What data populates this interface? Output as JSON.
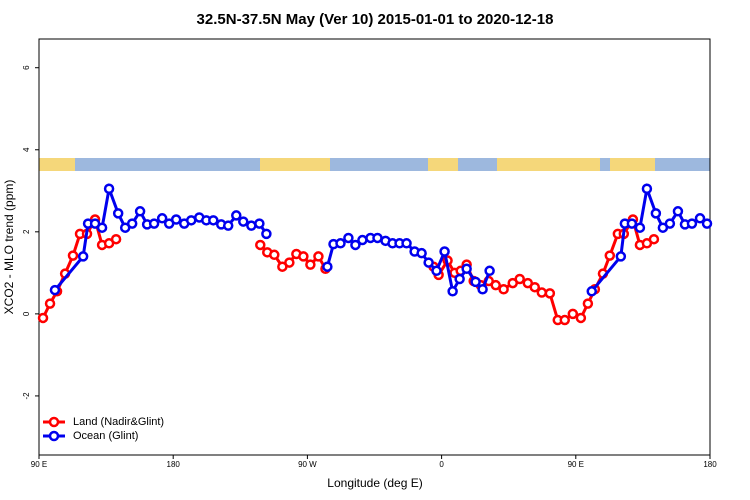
{
  "chart_data": {
    "type": "line",
    "title": "32.5N-37.5N May (Ver 10)   2015-01-01 to 2020-12-18",
    "xlabel": "Longitude (deg E)",
    "ylabel": "XCO2 - MLO trend (ppm)",
    "xlim": [
      90,
      540
    ],
    "ylim": [
      -3.44,
      6.7
    ],
    "xticks": [
      {
        "value": 90,
        "label": "90 E"
      },
      {
        "value": 180,
        "label": "180"
      },
      {
        "value": 270,
        "label": "90 W"
      },
      {
        "value": 360,
        "label": "0"
      },
      {
        "value": 450,
        "label": "90 E"
      },
      {
        "value": 540,
        "label": "180"
      }
    ],
    "yticks": [
      -2,
      0,
      2,
      4,
      6
    ],
    "legend": "bottom-left",
    "series": [
      {
        "name": "Land (Nadir&Glint)",
        "color": "#ff0000",
        "x": [
          92.7,
          97.4,
          102.1,
          107.5,
          112.8,
          117.5,
          122.2,
          127.6,
          132.3,
          137,
          141.7,
          238.4,
          243.1,
          247.8,
          253.2,
          257.9,
          262.6,
          267.3,
          272,
          277.4,
          282.1,
          354.6,
          358,
          364,
          368.7,
          372.8,
          376.8,
          381.5,
          386.2,
          391.6,
          396.3,
          401.6,
          407.7,
          412.4,
          417.8,
          422.5,
          427.2,
          432.6,
          437.9,
          442.6,
          448,
          453.4,
          458.1,
          462.8,
          468.2,
          472.8,
          478.2,
          482.2,
          488.3,
          493,
          497.7,
          502.4
        ],
        "values": [
          -0.1,
          0.25,
          0.55,
          0.98,
          1.42,
          1.95,
          1.95,
          2.3,
          1.68,
          1.72,
          1.82,
          1.68,
          1.5,
          1.44,
          1.15,
          1.25,
          1.46,
          1.4,
          1.2,
          1.4,
          1.1,
          1.15,
          0.95,
          1.3,
          1.0,
          1.05,
          1.2,
          0.8,
          0.7,
          0.8,
          0.7,
          0.6,
          0.75,
          0.85,
          0.75,
          0.65,
          0.52,
          0.5,
          -0.15,
          -0.15,
          0,
          -0.1,
          0.25,
          0.6,
          0.98,
          1.42,
          1.95,
          1.95,
          2.3,
          1.68,
          1.72,
          1.82
        ]
      },
      {
        "name": "Ocean (Glint)",
        "color": "#0000ee",
        "x": [
          100.7,
          119.6,
          122.9,
          127.6,
          132.3,
          137,
          143.1,
          147.8,
          152.5,
          157.8,
          162.5,
          167.2,
          172.6,
          177.3,
          182,
          187.4,
          192.1,
          197.5,
          202.2,
          206.9,
          212.2,
          216.9,
          222.3,
          227,
          232.4,
          237.8,
          242.5,
          283.4,
          287.5,
          292.2,
          297.5,
          302.2,
          306.9,
          312.3,
          317,
          322.4,
          327.1,
          331.8,
          336.5,
          341.9,
          346.6,
          351.3,
          356.6,
          362,
          367.4,
          372.1,
          376.8,
          382.8,
          387.5,
          392.2,
          460.7,
          480.2,
          482.9,
          487.6,
          493,
          497.7,
          503.7,
          508.4,
          513.1,
          518.5,
          523.2,
          527.9,
          533.3,
          538
        ],
        "values": [
          0.58,
          1.4,
          2.2,
          2.2,
          2.1,
          3.05,
          2.45,
          2.1,
          2.2,
          2.5,
          2.18,
          2.2,
          2.33,
          2.2,
          2.3,
          2.2,
          2.28,
          2.35,
          2.28,
          2.28,
          2.18,
          2.15,
          2.4,
          2.25,
          2.15,
          2.2,
          1.95,
          1.15,
          1.7,
          1.72,
          1.85,
          1.68,
          1.8,
          1.85,
          1.85,
          1.78,
          1.72,
          1.72,
          1.72,
          1.52,
          1.48,
          1.25,
          1.05,
          1.52,
          0.55,
          0.85,
          1.1,
          0.78,
          0.6,
          1.05,
          0.55,
          1.4,
          2.2,
          2.2,
          2.1,
          3.05,
          2.45,
          2.1,
          2.2,
          2.5,
          2.18,
          2.2,
          2.33,
          2.2
        ]
      }
    ]
  }
}
